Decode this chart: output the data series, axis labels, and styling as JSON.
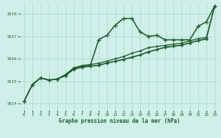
{
  "background_color": "#cff0e8",
  "grid_color": "#b0d8cc",
  "line_color": "#1e5c2e",
  "title": "Graphe pression niveau de la mer (hPa)",
  "xlim": [
    -0.5,
    23.5
  ],
  "ylim": [
    1013.7,
    1018.5
  ],
  "yticks": [
    1014,
    1015,
    1016,
    1017,
    1018
  ],
  "xticks": [
    0,
    1,
    2,
    3,
    4,
    5,
    6,
    7,
    8,
    9,
    10,
    11,
    12,
    13,
    14,
    15,
    16,
    17,
    18,
    19,
    20,
    21,
    22,
    23
  ],
  "series": [
    {
      "y": [
        1014.1,
        1014.85,
        1015.15,
        1015.05,
        1015.1,
        1015.25,
        1015.55,
        1015.65,
        1015.7,
        1016.85,
        1017.05,
        1017.5,
        1017.8,
        1017.8,
        1017.2,
        1017.0,
        1017.05,
        1016.85,
        1016.85,
        1016.85,
        1016.85,
        1017.45,
        1017.65,
        1018.35
      ],
      "with_markers": true,
      "linewidth": 1.2,
      "markersize": 4.5
    },
    {
      "y": [
        1014.1,
        1014.85,
        1015.15,
        1015.05,
        1015.1,
        1015.3,
        1015.6,
        1015.7,
        1015.75,
        1015.8,
        1015.9,
        1016.0,
        1016.1,
        1016.25,
        1016.35,
        1016.5,
        1016.55,
        1016.6,
        1016.65,
        1016.7,
        1016.8,
        1016.9,
        1016.95,
        1018.35
      ],
      "with_markers": true,
      "linewidth": 1.0,
      "markersize": 3.5
    },
    {
      "y": [
        1014.1,
        1014.85,
        1015.15,
        1015.05,
        1015.1,
        1015.28,
        1015.55,
        1015.65,
        1015.68,
        1015.72,
        1015.82,
        1015.9,
        1015.98,
        1016.08,
        1016.18,
        1016.32,
        1016.42,
        1016.52,
        1016.57,
        1016.62,
        1016.72,
        1016.82,
        1016.9,
        1018.35
      ],
      "with_markers": true,
      "linewidth": 0.9,
      "markersize": 3.0
    },
    {
      "y": [
        1014.1,
        1014.85,
        1015.15,
        1015.05,
        1015.1,
        1015.26,
        1015.52,
        1015.62,
        1015.66,
        1015.7,
        1015.8,
        1015.88,
        1015.96,
        1016.06,
        1016.16,
        1016.3,
        1016.4,
        1016.5,
        1016.55,
        1016.6,
        1016.7,
        1016.8,
        1016.88,
        1018.35
      ],
      "with_markers": true,
      "linewidth": 0.8,
      "markersize": 2.8
    }
  ],
  "marker": "+"
}
